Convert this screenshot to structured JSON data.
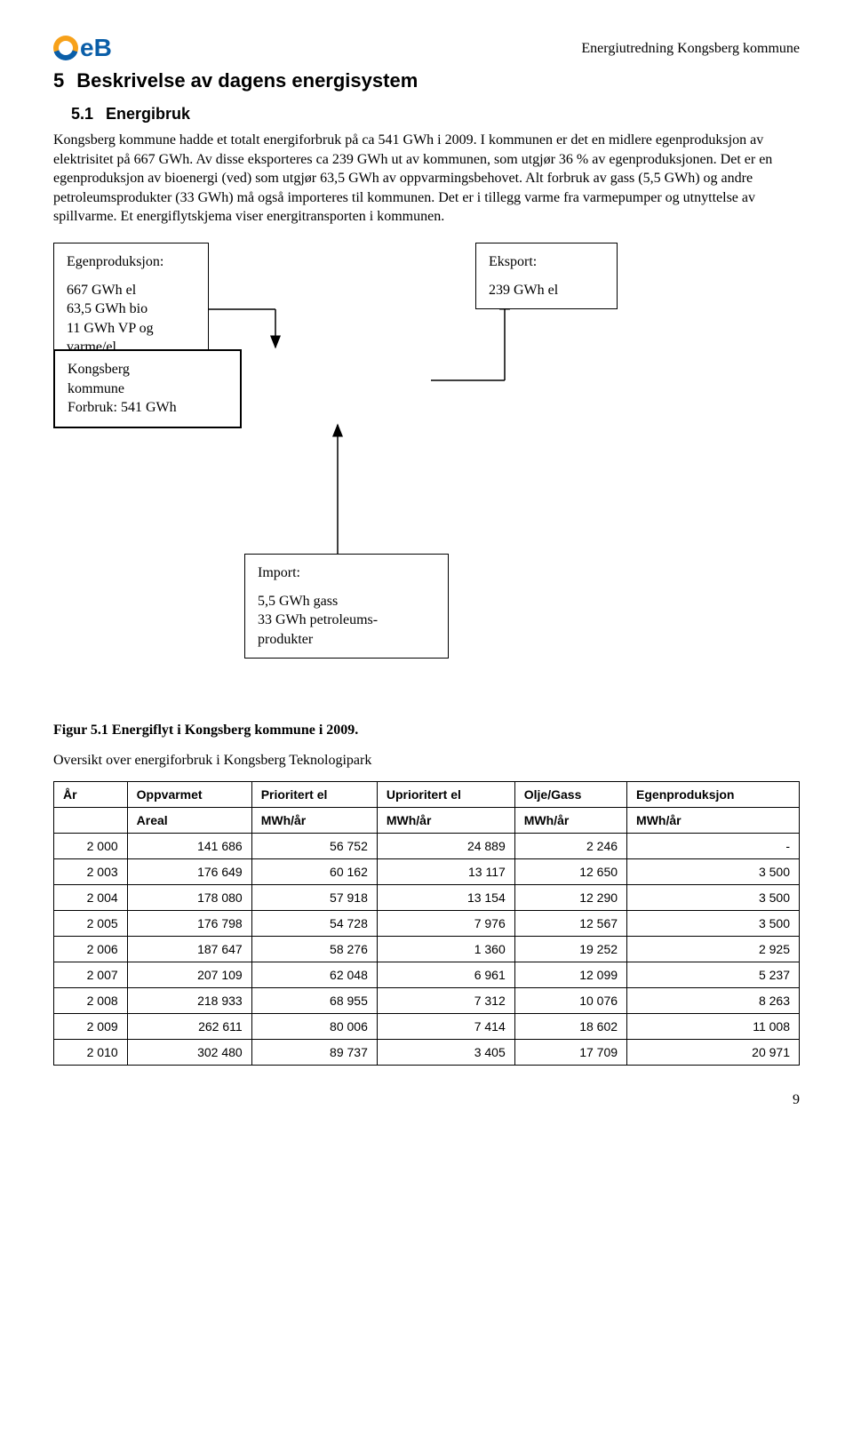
{
  "header": {
    "logo_text": "eB",
    "doc_title": "Energiutredning Kongsberg kommune"
  },
  "section": {
    "number": "5",
    "title": "Beskrivelse av dagens energisystem"
  },
  "subsection": {
    "number": "5.1",
    "title": "Energibruk"
  },
  "body_paragraph": "Kongsberg kommune hadde et totalt energiforbruk på ca 541 GWh i 2009. I kommunen er det en midlere egenproduksjon av elektrisitet på 667 GWh. Av disse eksporteres ca 239 GWh ut av kommunen, som utgjør 36 % av egenproduksjonen. Det er en egenproduksjon av bioenergi (ved) som utgjør 63,5 GWh av oppvarmingsbehovet. Alt forbruk av gass (5,5 GWh) og andre petroleumsprodukter (33 GWh) må også importeres til kommunen. Det er i tillegg varme fra varmepumper og utnyttelse av spillvarme. Et energiflytskjema viser energitransporten i kommunen.",
  "diagram": {
    "egenproduksjon": {
      "title": "Egenproduksjon:",
      "lines": [
        "667 GWh el",
        "63,5 GWh bio",
        "11 GWh VP og",
        "varme/el"
      ]
    },
    "kommune": {
      "lines": [
        "Kongsberg",
        "kommune",
        "Forbruk: 541 GWh"
      ]
    },
    "eksport": {
      "title": "Eksport:",
      "line": "239 GWh el"
    },
    "import": {
      "title": "Import:",
      "lines": [
        "5,5 GWh gass",
        "33 GWh petroleums-",
        "produkter"
      ]
    },
    "arrow_color": "#000000",
    "box_border_color": "#000000"
  },
  "figure_caption": "Figur 5.1 Energiflyt i Kongsberg kommune i 2009.",
  "table_intro": "Oversikt over energiforbruk i Kongsberg Teknologipark",
  "table": {
    "header_row1": [
      "År",
      "Oppvarmet",
      "Prioritert el",
      "Uprioritert el",
      "Olje/Gass",
      "Egenproduksjon"
    ],
    "header_row2": [
      "",
      "Areal",
      "MWh/år",
      "MWh/år",
      "MWh/år",
      "MWh/år"
    ],
    "rows": [
      [
        "2 000",
        "141 686",
        "56 752",
        "24 889",
        "2 246",
        "-"
      ],
      [
        "2 003",
        "176 649",
        "60 162",
        "13 117",
        "12 650",
        "3 500"
      ],
      [
        "2 004",
        "178 080",
        "57 918",
        "13 154",
        "12 290",
        "3 500"
      ],
      [
        "2 005",
        "176 798",
        "54 728",
        "7 976",
        "12 567",
        "3 500"
      ],
      [
        "2 006",
        "187 647",
        "58 276",
        "1 360",
        "19 252",
        "2 925"
      ],
      [
        "2 007",
        "207 109",
        "62 048",
        "6 961",
        "12 099",
        "5 237"
      ],
      [
        "2 008",
        "218 933",
        "68 955",
        "7 312",
        "10 076",
        "8 263"
      ],
      [
        "2 009",
        "262 611",
        "80 006",
        "7 414",
        "18 602",
        "11 008"
      ],
      [
        "2 010",
        "302 480",
        "89 737",
        "3 405",
        "17 709",
        "20 971"
      ]
    ],
    "font_size": 14,
    "border_color": "#000000"
  },
  "page_number": "9"
}
